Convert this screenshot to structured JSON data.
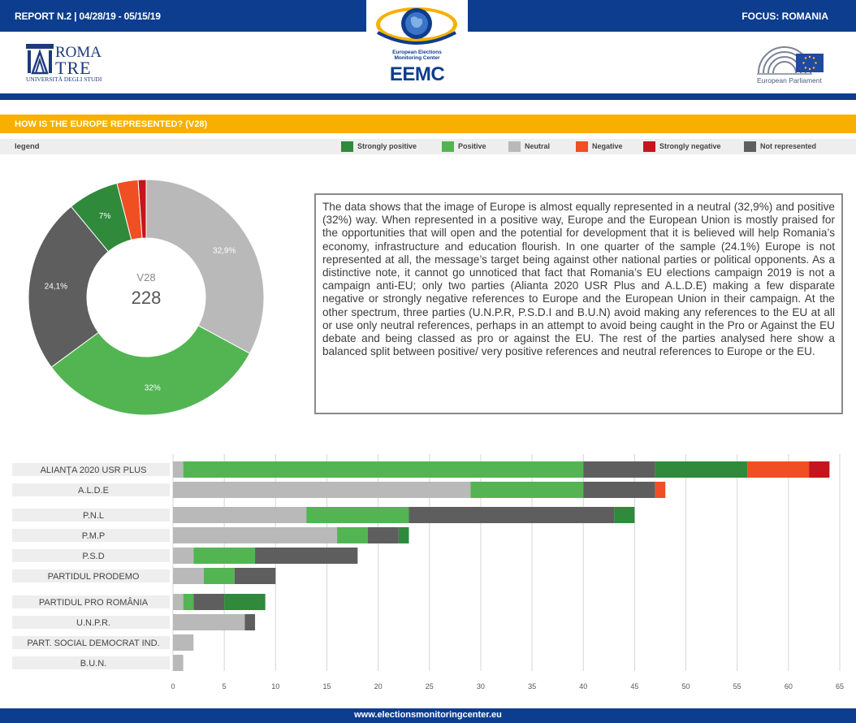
{
  "header": {
    "report": "REPORT N.2 | 04/28/19 - 05/15/19",
    "focus": "FOCUS: ROMANIA",
    "left_logo": {
      "line1": "ROMA",
      "line2": "TRE",
      "sub": "UNIVERSITÀ DEGLI STUDI"
    },
    "center_logo": {
      "line1": "European Elections",
      "line2": "Monitoring Center",
      "title": "EEMC"
    },
    "right_logo": {
      "label": "European Parliament"
    }
  },
  "section": {
    "title": "HOW IS THE EUROPE REPRESENTED? (V28)"
  },
  "legend": {
    "title": "legend",
    "items": [
      {
        "label": "Strongly positive",
        "color": "#2f8a3c"
      },
      {
        "label": "Positive",
        "color": "#52b552"
      },
      {
        "label": "Neutral",
        "color": "#b9b9b9"
      },
      {
        "label": "Negative",
        "color": "#f04e23"
      },
      {
        "label": "Strongly negative",
        "color": "#c4161c"
      },
      {
        "label": "Not represented",
        "color": "#5e5e5e"
      }
    ]
  },
  "summary": {
    "text": "The data shows that the image of Europe is almost equally represented in a neutral (32,9%) and positive (32%) way. When represented in a positive way, Europe and the European Union is mostly praised for the opportunities that will open and the potential for development that it is believed will help Romania’s economy, infrastructure and education flourish. In one quarter of the sample (24.1%) Europe is not represented at all, the message’s target being against other national parties or political opponents. As a distinctive note, it cannot go unnoticed that fact that Romania’s EU elections campaign 2019 is not a campaign anti-EU; only two parties (Alianta 2020 USR Plus and A.L.D.E) making a few disparate negative or strongly negative references to Europe and the European Union in their campaign. At the other spectrum, three parties (U.N.P.R, P.S.D.I and B.U.N) avoid making any references to the EU at all or use only neutral references, perhaps in an attempt to avoid being caught in the Pro or Against the EU debate and being classed as pro or against the EU. The rest of the parties analysed here show a balanced split between positive/ very positive references and neutral references to Europe or the EU."
  },
  "footer": {
    "url": "www.electionsmonitoringcenter.eu"
  },
  "chart_data": [
    {
      "type": "pie",
      "center_label": "V28",
      "center_value": "228",
      "slices": [
        {
          "category": "Neutral",
          "value": 32.9,
          "label": "32,9%",
          "color": "#b9b9b9"
        },
        {
          "category": "Positive",
          "value": 32.0,
          "label": "32%",
          "color": "#52b552"
        },
        {
          "category": "Not represented",
          "value": 24.1,
          "label": "24,1%",
          "color": "#5e5e5e"
        },
        {
          "category": "Strongly positive",
          "value": 7.0,
          "label": "7%",
          "color": "#2f8a3c"
        },
        {
          "category": "Negative",
          "value": 2.9,
          "label": "",
          "color": "#f04e23"
        },
        {
          "category": "Strongly negative",
          "value": 1.1,
          "label": "",
          "color": "#c4161c"
        }
      ]
    },
    {
      "type": "bar",
      "orientation": "horizontal",
      "stacked": true,
      "xlim": [
        0,
        65
      ],
      "xticks": [
        0,
        5,
        10,
        15,
        20,
        25,
        30,
        35,
        40,
        45,
        50,
        55,
        60,
        65
      ],
      "categories": [
        "ALIANŢA 2020 USR PLUS",
        "A.L.D.E",
        "P.N.L",
        "P.M.P",
        "P.S.D",
        "PARTIDUL PRODEMO",
        "PARTIDUL PRO ROMÂNIA",
        "U.N.P.R.",
        "PART. SOCIAL DEMOCRAT IND.",
        "B.U.N."
      ],
      "series": [
        {
          "name": "Neutral",
          "color": "#b9b9b9",
          "values": [
            1,
            29,
            13,
            16,
            2,
            3,
            1,
            7,
            2,
            1
          ]
        },
        {
          "name": "Positive",
          "color": "#52b552",
          "values": [
            39,
            11,
            10,
            3,
            6,
            3,
            1,
            0,
            0,
            0
          ]
        },
        {
          "name": "Not represented",
          "color": "#5e5e5e",
          "values": [
            7,
            7,
            20,
            3,
            10,
            4,
            3,
            1,
            0,
            0
          ]
        },
        {
          "name": "Strongly positive",
          "color": "#2f8a3c",
          "values": [
            9,
            0,
            2,
            1,
            0,
            0,
            4,
            0,
            0,
            0
          ]
        },
        {
          "name": "Negative",
          "color": "#f04e23",
          "values": [
            6,
            1,
            0,
            0,
            0,
            0,
            0,
            0,
            0,
            0
          ]
        },
        {
          "name": "Strongly negative",
          "color": "#c4161c",
          "values": [
            2,
            0,
            0,
            0,
            0,
            0,
            0,
            0,
            0,
            0
          ]
        }
      ]
    }
  ]
}
